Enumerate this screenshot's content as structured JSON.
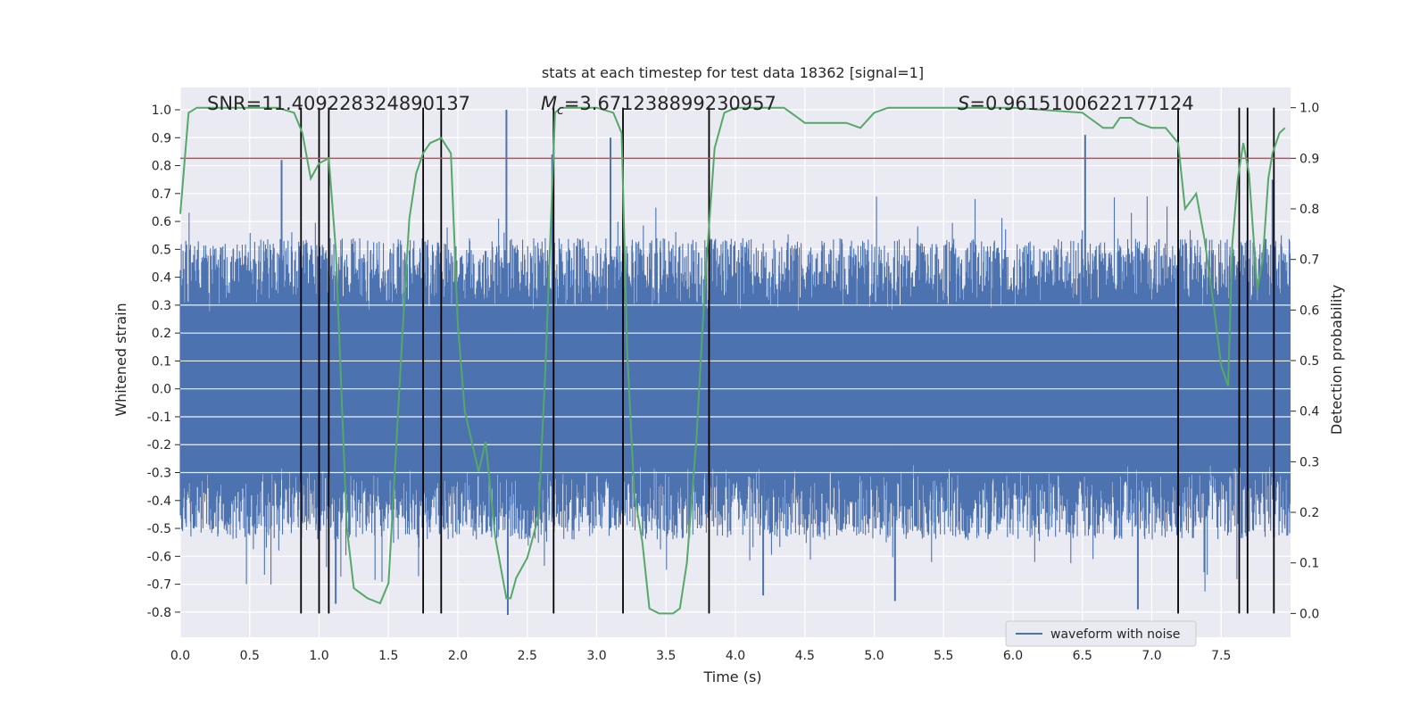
{
  "chart_data": {
    "type": "line",
    "title": "stats at each timestep for test data 18362 [signal=1]",
    "xlabel": "Time (s)",
    "ylabel_left": "Whitened strain",
    "ylabel_right": "Detection probability",
    "xlim": [
      0.0,
      8.0
    ],
    "ylim_left": [
      -0.89,
      1.08
    ],
    "ylim_right": [
      -0.047,
      1.04
    ],
    "x_ticks": [
      "0.0",
      "0.5",
      "1.0",
      "1.5",
      "2.0",
      "2.5",
      "3.0",
      "3.5",
      "4.0",
      "4.5",
      "5.0",
      "5.5",
      "6.0",
      "6.5",
      "7.0",
      "7.5"
    ],
    "y_ticks_left": [
      "-0.8",
      "-0.7",
      "-0.6",
      "-0.5",
      "-0.4",
      "-0.3",
      "-0.2",
      "-0.1",
      "0.0",
      "0.1",
      "0.2",
      "0.3",
      "0.4",
      "0.5",
      "0.6",
      "0.7",
      "0.8",
      "0.9",
      "1.0"
    ],
    "y_ticks_right": [
      "0.0",
      "0.1",
      "0.2",
      "0.3",
      "0.4",
      "0.5",
      "0.6",
      "0.7",
      "0.8",
      "0.9",
      "1.0"
    ],
    "grid": true,
    "annotations": {
      "snr": "SNR=11.409228324890137",
      "mc_symbol": "M",
      "mc_sub": "c",
      "mc_value": "=3.671238899230957",
      "s_symbol": "S",
      "s_value": "=0.9615100622177124"
    },
    "threshold_right": 0.9,
    "event_markers": [
      0.87,
      1.0,
      1.07,
      1.75,
      1.88,
      2.69,
      3.19,
      3.81,
      7.19,
      7.63,
      7.69,
      7.88
    ],
    "waveform_peaks": [
      {
        "x": 0.73,
        "y": 0.82
      },
      {
        "x": 2.35,
        "y": 1.0
      },
      {
        "x": 2.36,
        "y": -0.81
      },
      {
        "x": 3.1,
        "y": 0.9
      },
      {
        "x": 2.68,
        "y": 0.84
      },
      {
        "x": 6.52,
        "y": 0.91
      },
      {
        "x": 6.9,
        "y": -0.79
      },
      {
        "x": 7.87,
        "y": 0.75
      },
      {
        "x": 1.12,
        "y": -0.77
      },
      {
        "x": 4.2,
        "y": -0.74
      },
      {
        "x": 5.15,
        "y": -0.76
      }
    ],
    "series": [
      {
        "name": "waveform with noise",
        "color": "#4c72b0",
        "envelope": [
          -0.45,
          0.45
        ]
      },
      {
        "color": "#55a868",
        "axis": "right",
        "x": [
          0.0,
          0.06,
          0.12,
          0.2,
          0.3,
          0.4,
          0.55,
          0.7,
          0.82,
          0.88,
          0.94,
          1.0,
          1.07,
          1.12,
          1.2,
          1.25,
          1.3,
          1.35,
          1.44,
          1.5,
          1.55,
          1.6,
          1.65,
          1.7,
          1.75,
          1.8,
          1.88,
          1.95,
          2.0,
          2.05,
          2.15,
          2.2,
          2.27,
          2.35,
          2.38,
          2.42,
          2.5,
          2.58,
          2.63,
          2.7,
          2.74,
          2.8,
          2.9,
          3.0,
          3.12,
          3.18,
          3.22,
          3.27,
          3.33,
          3.38,
          3.45,
          3.55,
          3.6,
          3.65,
          3.72,
          3.78,
          3.85,
          3.92,
          4.0,
          4.1,
          4.2,
          4.35,
          4.45,
          4.5,
          4.6,
          4.8,
          4.9,
          5.0,
          5.1,
          5.3,
          5.5,
          6.0,
          6.5,
          6.55,
          6.65,
          6.72,
          6.77,
          6.85,
          6.9,
          7.0,
          7.1,
          7.19,
          7.24,
          7.32,
          7.38,
          7.45,
          7.5,
          7.55,
          7.58,
          7.62,
          7.66,
          7.7,
          7.76,
          7.8,
          7.84,
          7.87,
          7.92,
          7.96
        ],
        "y": [
          0.79,
          0.99,
          1.0,
          1.0,
          1.0,
          1.0,
          1.0,
          1.0,
          0.99,
          0.95,
          0.86,
          0.89,
          0.9,
          0.72,
          0.17,
          0.05,
          0.04,
          0.03,
          0.02,
          0.06,
          0.3,
          0.55,
          0.78,
          0.87,
          0.91,
          0.93,
          0.94,
          0.91,
          0.57,
          0.4,
          0.28,
          0.34,
          0.15,
          0.03,
          0.03,
          0.07,
          0.11,
          0.19,
          0.48,
          0.99,
          1.0,
          1.0,
          1.0,
          1.0,
          0.99,
          0.95,
          0.52,
          0.24,
          0.14,
          0.01,
          0.0,
          0.0,
          0.01,
          0.1,
          0.35,
          0.65,
          0.92,
          0.99,
          1.0,
          1.0,
          1.0,
          1.0,
          0.98,
          0.97,
          0.97,
          0.97,
          0.96,
          0.99,
          1.0,
          1.0,
          1.0,
          1.0,
          0.99,
          0.98,
          0.96,
          0.96,
          0.98,
          0.98,
          0.97,
          0.96,
          0.96,
          0.93,
          0.8,
          0.83,
          0.74,
          0.6,
          0.49,
          0.45,
          0.73,
          0.86,
          0.93,
          0.87,
          0.64,
          0.7,
          0.86,
          0.91,
          0.95,
          0.96
        ]
      }
    ],
    "legend": {
      "label": "waveform with noise",
      "location": "lower-right"
    }
  },
  "colors": {
    "axes_bg": "#eaeaf2",
    "grid": "#ffffff",
    "waveform": "#4c72b0",
    "probability": "#55a868",
    "threshold": "#c44e52",
    "markers": "#000000"
  }
}
